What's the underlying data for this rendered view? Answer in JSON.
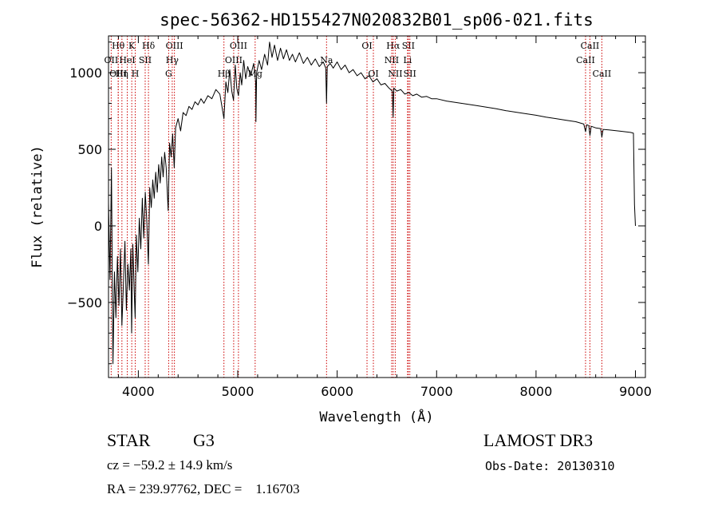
{
  "chart_data": {
    "type": "line",
    "title": "spec-56362-HD155427N020832B01_sp06-021.fits",
    "xlabel": "Wavelength (Å)",
    "ylabel": "Flux (relative)",
    "xlim": [
      3700,
      9100
    ],
    "ylim": [
      -990,
      1240
    ],
    "x_ticks": [
      4000,
      5000,
      6000,
      7000,
      8000,
      9000
    ],
    "y_ticks": [
      -500,
      0,
      500,
      1000
    ],
    "grid": false,
    "series": [
      {
        "name": "flux",
        "points": [
          [
            3700,
            150
          ],
          [
            3715,
            -350
          ],
          [
            3730,
            380
          ],
          [
            3745,
            -900
          ],
          [
            3760,
            -300
          ],
          [
            3775,
            -600
          ],
          [
            3790,
            -200
          ],
          [
            3805,
            -520
          ],
          [
            3820,
            -150
          ],
          [
            3835,
            -650
          ],
          [
            3850,
            -380
          ],
          [
            3865,
            -100
          ],
          [
            3880,
            -550
          ],
          [
            3895,
            -250
          ],
          [
            3910,
            -420
          ],
          [
            3925,
            -150
          ],
          [
            3933,
            -700
          ],
          [
            3945,
            -120
          ],
          [
            3960,
            -450
          ],
          [
            3968,
            -600
          ],
          [
            3980,
            -60
          ],
          [
            3995,
            -300
          ],
          [
            4010,
            50
          ],
          [
            4025,
            -150
          ],
          [
            4040,
            180
          ],
          [
            4055,
            -80
          ],
          [
            4070,
            220
          ],
          [
            4085,
            30
          ],
          [
            4101,
            -250
          ],
          [
            4115,
            250
          ],
          [
            4130,
            120
          ],
          [
            4145,
            300
          ],
          [
            4160,
            180
          ],
          [
            4175,
            350
          ],
          [
            4190,
            220
          ],
          [
            4205,
            400
          ],
          [
            4220,
            280
          ],
          [
            4235,
            450
          ],
          [
            4250,
            320
          ],
          [
            4265,
            480
          ],
          [
            4280,
            380
          ],
          [
            4300,
            100
          ],
          [
            4315,
            540
          ],
          [
            4330,
            450
          ],
          [
            4345,
            600
          ],
          [
            4361,
            380
          ],
          [
            4375,
            640
          ],
          [
            4400,
            700
          ],
          [
            4425,
            620
          ],
          [
            4450,
            740
          ],
          [
            4480,
            720
          ],
          [
            4510,
            780
          ],
          [
            4540,
            760
          ],
          [
            4570,
            810
          ],
          [
            4600,
            790
          ],
          [
            4630,
            830
          ],
          [
            4660,
            800
          ],
          [
            4700,
            850
          ],
          [
            4740,
            830
          ],
          [
            4780,
            890
          ],
          [
            4820,
            860
          ],
          [
            4861,
            700
          ],
          [
            4880,
            940
          ],
          [
            4900,
            870
          ],
          [
            4920,
            1020
          ],
          [
            4940,
            880
          ],
          [
            4957,
            820
          ],
          [
            4975,
            1050
          ],
          [
            4990,
            900
          ],
          [
            5007,
            850
          ],
          [
            5025,
            1000
          ],
          [
            5040,
            920
          ],
          [
            5060,
            1080
          ],
          [
            5080,
            960
          ],
          [
            5100,
            1040
          ],
          [
            5130,
            980
          ],
          [
            5160,
            1060
          ],
          [
            5180,
            940
          ],
          [
            5183,
            680
          ],
          [
            5190,
            1000
          ],
          [
            5215,
            1080
          ],
          [
            5240,
            1020
          ],
          [
            5270,
            1120
          ],
          [
            5300,
            1050
          ],
          [
            5320,
            1200
          ],
          [
            5345,
            1100
          ],
          [
            5370,
            1180
          ],
          [
            5400,
            1080
          ],
          [
            5430,
            1160
          ],
          [
            5460,
            1090
          ],
          [
            5490,
            1150
          ],
          [
            5520,
            1080
          ],
          [
            5550,
            1120
          ],
          [
            5580,
            1070
          ],
          [
            5620,
            1130
          ],
          [
            5660,
            1060
          ],
          [
            5700,
            1100
          ],
          [
            5740,
            1050
          ],
          [
            5780,
            1090
          ],
          [
            5820,
            1040
          ],
          [
            5860,
            1070
          ],
          [
            5885,
            1030
          ],
          [
            5893,
            800
          ],
          [
            5900,
            1040
          ],
          [
            5930,
            1060
          ],
          [
            5960,
            1030
          ],
          [
            6000,
            1070
          ],
          [
            6040,
            1020
          ],
          [
            6080,
            1050
          ],
          [
            6120,
            1000
          ],
          [
            6160,
            1020
          ],
          [
            6200,
            980
          ],
          [
            6240,
            1000
          ],
          [
            6280,
            960
          ],
          [
            6320,
            980
          ],
          [
            6360,
            940
          ],
          [
            6400,
            960
          ],
          [
            6440,
            920
          ],
          [
            6480,
            930
          ],
          [
            6520,
            900
          ],
          [
            6555,
            880
          ],
          [
            6563,
            710
          ],
          [
            6570,
            900
          ],
          [
            6600,
            880
          ],
          [
            6640,
            890
          ],
          [
            6680,
            860
          ],
          [
            6720,
            870
          ],
          [
            6760,
            850
          ],
          [
            6800,
            860
          ],
          [
            6850,
            840
          ],
          [
            6900,
            845
          ],
          [
            6950,
            830
          ],
          [
            7000,
            830
          ],
          [
            7100,
            815
          ],
          [
            7200,
            805
          ],
          [
            7300,
            795
          ],
          [
            7400,
            785
          ],
          [
            7500,
            775
          ],
          [
            7600,
            765
          ],
          [
            7700,
            752
          ],
          [
            7800,
            742
          ],
          [
            7900,
            732
          ],
          [
            8000,
            722
          ],
          [
            8100,
            710
          ],
          [
            8200,
            700
          ],
          [
            8300,
            690
          ],
          [
            8400,
            680
          ],
          [
            8480,
            665
          ],
          [
            8498,
            615
          ],
          [
            8510,
            660
          ],
          [
            8530,
            655
          ],
          [
            8542,
            590
          ],
          [
            8555,
            650
          ],
          [
            8600,
            640
          ],
          [
            8650,
            635
          ],
          [
            8662,
            580
          ],
          [
            8675,
            630
          ],
          [
            8750,
            625
          ],
          [
            8850,
            618
          ],
          [
            8950,
            610
          ],
          [
            8980,
            605
          ],
          [
            8990,
            140
          ],
          [
            9000,
            0
          ]
        ]
      }
    ],
    "line_markers": [
      {
        "name": "OII",
        "x": 3727,
        "row": 1
      },
      {
        "name": "Hθ",
        "x": 3798,
        "row": 0
      },
      {
        "name": "OIII",
        "x": 3798,
        "row": 2
      },
      {
        "name": "HeI",
        "x": 3889,
        "row": 1
      },
      {
        "name": "K",
        "x": 3934,
        "row": 0
      },
      {
        "name": "Hη",
        "x": 3835,
        "row": 2
      },
      {
        "name": "SII",
        "x": 4069,
        "row": 1
      },
      {
        "name": "H",
        "x": 3969,
        "row": 2
      },
      {
        "name": "Hδ",
        "x": 4102,
        "row": 0
      },
      {
        "name": "OIII",
        "x": 4363,
        "row": 0
      },
      {
        "name": "Hγ",
        "x": 4341,
        "row": 1
      },
      {
        "name": "G",
        "x": 4305,
        "row": 2
      },
      {
        "name": "OIII",
        "x": 5007,
        "row": 0
      },
      {
        "name": "OIII",
        "x": 4959,
        "row": 1
      },
      {
        "name": "Hβ",
        "x": 4861,
        "row": 2
      },
      {
        "name": "Mg",
        "x": 5175,
        "row": 2
      },
      {
        "name": "Na",
        "x": 5893,
        "row": 1
      },
      {
        "name": "OI",
        "x": 6300,
        "row": 0
      },
      {
        "name": "OI",
        "x": 6364,
        "row": 2
      },
      {
        "name": "Hα",
        "x": 6563,
        "row": 0
      },
      {
        "name": "SII",
        "x": 6716,
        "row": 0
      },
      {
        "name": "NII",
        "x": 6548,
        "row": 1
      },
      {
        "name": "Li",
        "x": 6708,
        "row": 1
      },
      {
        "name": "NII",
        "x": 6584,
        "row": 2
      },
      {
        "name": "SII",
        "x": 6731,
        "row": 2
      },
      {
        "name": "CaII",
        "x": 8542,
        "row": 0
      },
      {
        "name": "CaII",
        "x": 8498,
        "row": 1
      },
      {
        "name": "CaII",
        "x": 8662,
        "row": 2
      }
    ]
  },
  "info": {
    "class": "STAR",
    "subclass": "G3",
    "survey": "LAMOST DR3",
    "cz": "cz = −59.2 ± 14.9 km/s",
    "obs_date": "Obs-Date: 20130310",
    "radec": "RA = 239.97762, DEC =    1.16703"
  },
  "colors": {
    "spectrum": "#000000",
    "marker": "#cc0000",
    "axis": "#000000"
  }
}
